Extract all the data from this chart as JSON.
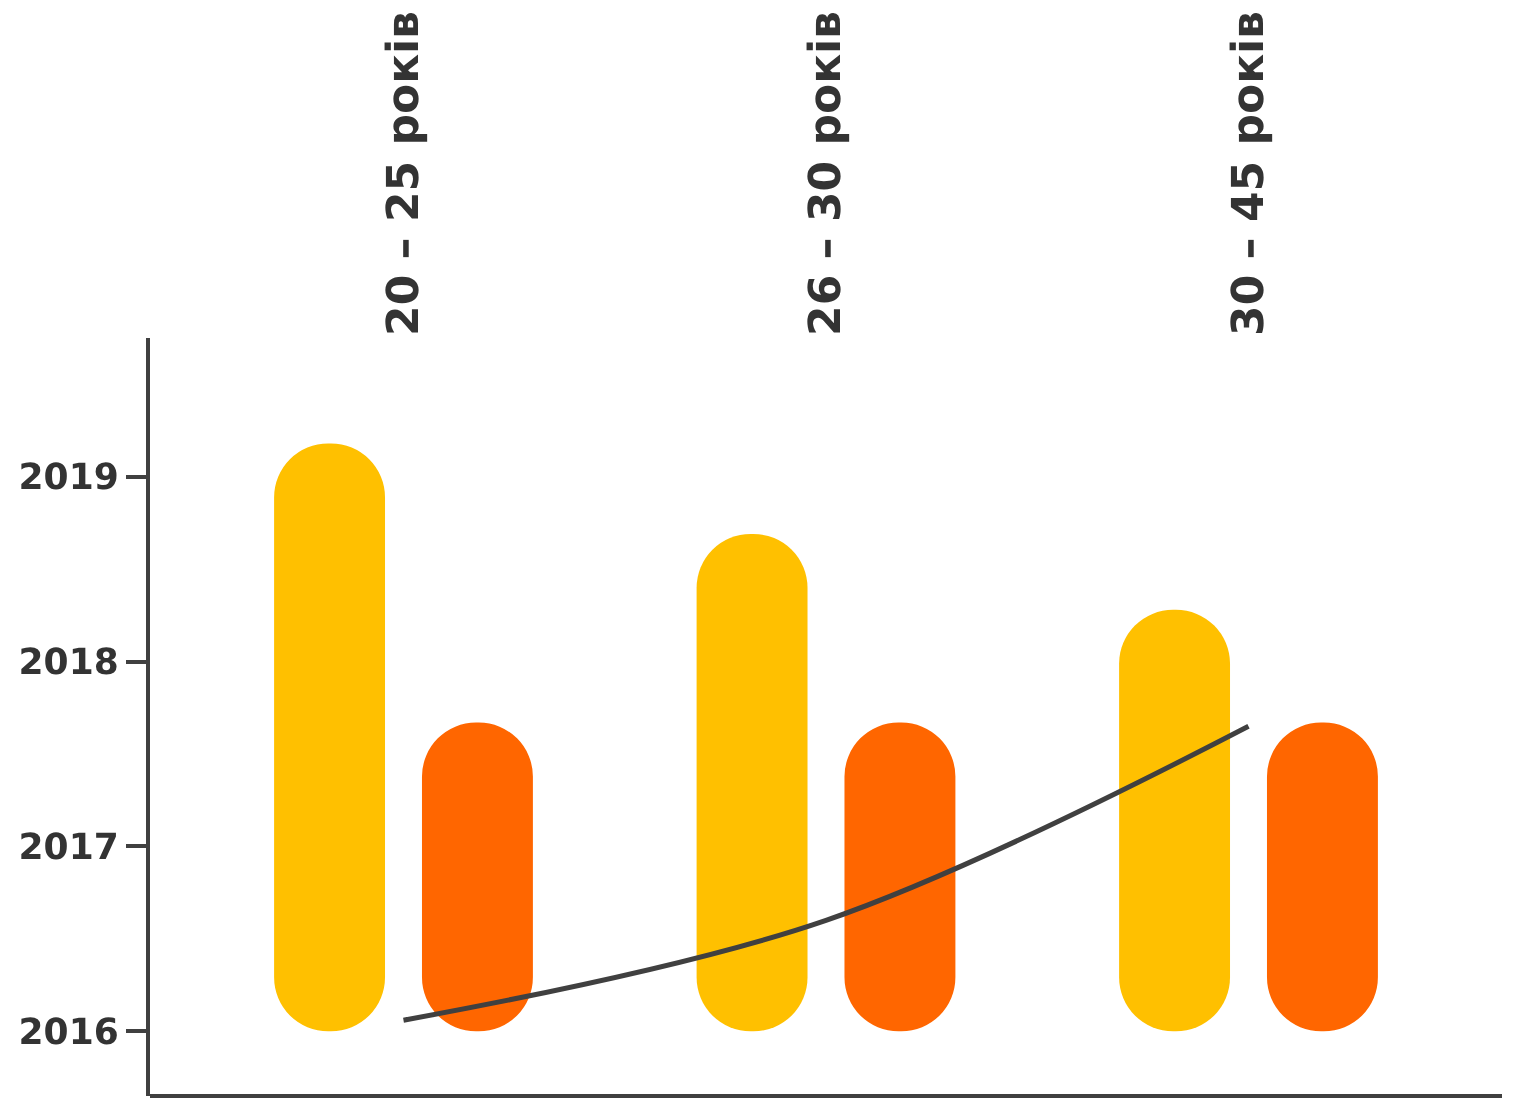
{
  "chart_data": {
    "type": "bar",
    "categories": [
      "20 – 25 років",
      "26 – 30 років",
      "30 – 45 років"
    ],
    "series": [
      {
        "color": "#ffc000",
        "base": [
          2016,
          2016,
          2016
        ],
        "values": [
          3.18,
          2.69,
          2.28
        ]
      },
      {
        "color": "#ff6600",
        "base": [
          2016,
          2016,
          2016
        ],
        "values": [
          1.67,
          1.67,
          1.67
        ]
      },
      {
        "type": "line",
        "color": "#404040",
        "values": [
          2016.06,
          2016.6,
          2017.65
        ]
      }
    ],
    "ylim": [
      2015.65,
      2019.75
    ],
    "yticks": [
      2016,
      2017,
      2018,
      2019
    ],
    "grid": false,
    "marker": "none"
  }
}
